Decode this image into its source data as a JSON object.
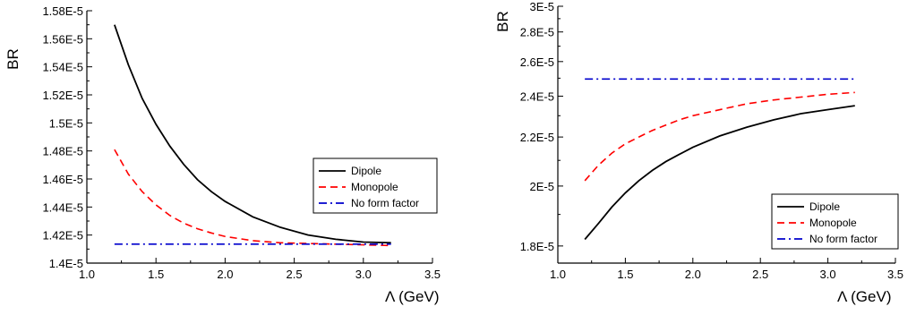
{
  "chart_data": [
    {
      "type": "line",
      "xlabel": "Λ (GeV)",
      "ylabel": "BR",
      "xlim": [
        1.0,
        3.5
      ],
      "ylim": [
        1.4e-05,
        1.58e-05
      ],
      "xticks": [
        "1.0",
        "1.5",
        "2.0",
        "2.5",
        "3.0",
        "3.5"
      ],
      "xtick_values": [
        1.0,
        1.5,
        2.0,
        2.5,
        3.0,
        3.5
      ],
      "yticks": [
        "1.4E-5",
        "1.42E-5",
        "1.44E-5",
        "1.46E-5",
        "1.48E-5",
        "1.5E-5",
        "1.52E-5",
        "1.54E-5",
        "1.56E-5",
        "1.58E-5"
      ],
      "ytick_values": [
        1.4e-05,
        1.42e-05,
        1.44e-05,
        1.46e-05,
        1.48e-05,
        1.5e-05,
        1.52e-05,
        1.54e-05,
        1.56e-05,
        1.58e-05
      ],
      "grid": false,
      "legend_position": "middle-right",
      "series": [
        {
          "name": "Dipole",
          "color": "#000000",
          "dash": "solid",
          "x": [
            1.2,
            1.3,
            1.4,
            1.5,
            1.6,
            1.7,
            1.8,
            1.9,
            2.0,
            2.2,
            2.4,
            2.6,
            2.8,
            3.0,
            3.2
          ],
          "y": [
            1.57e-05,
            1.5415e-05,
            1.5175e-05,
            1.499e-05,
            1.4835e-05,
            1.4705e-05,
            1.4595e-05,
            1.451e-05,
            1.444e-05,
            1.433e-05,
            1.4255e-05,
            1.42e-05,
            1.417e-05,
            1.415e-05,
            1.4145e-05
          ]
        },
        {
          "name": "Monopole",
          "color": "#ff0000",
          "dash": "dashed",
          "x": [
            1.2,
            1.3,
            1.4,
            1.5,
            1.6,
            1.7,
            1.8,
            1.9,
            2.0,
            2.2,
            2.4,
            2.6,
            2.8,
            3.0,
            3.2
          ],
          "y": [
            1.481e-05,
            1.4635e-05,
            1.451e-05,
            1.4415e-05,
            1.434e-05,
            1.4285e-05,
            1.4245e-05,
            1.4215e-05,
            1.419e-05,
            1.416e-05,
            1.4145e-05,
            1.414e-05,
            1.4135e-05,
            1.413e-05,
            1.4125e-05
          ]
        },
        {
          "name": "No form factor",
          "color": "#0000cc",
          "dash": "dashdot",
          "x": [
            1.2,
            3.2
          ],
          "y": [
            1.4135e-05,
            1.4135e-05
          ]
        }
      ]
    },
    {
      "type": "line",
      "xlabel": "Λ (GeV)",
      "ylabel": "BR",
      "xlim": [
        1.0,
        3.5
      ],
      "ylim": [
        1.75e-05,
        3e-05
      ],
      "yscale": "reciprocal",
      "xticks": [
        "1.0",
        "1.5",
        "2.0",
        "2.5",
        "3.0",
        "3.5"
      ],
      "xtick_values": [
        1.0,
        1.5,
        2.0,
        2.5,
        3.0,
        3.5
      ],
      "yticks": [
        "1.8E-5",
        "2E-5",
        "2.2E-5",
        "2.4E-5",
        "2.6E-5",
        "2.8E-5",
        "3E-5"
      ],
      "ytick_values": [
        1.8e-05,
        2e-05,
        2.2e-05,
        2.4e-05,
        2.6e-05,
        2.8e-05,
        3e-05
      ],
      "grid": false,
      "legend_position": "bottom-right",
      "series": [
        {
          "name": "Dipole",
          "color": "#000000",
          "dash": "solid",
          "x": [
            1.2,
            1.3,
            1.4,
            1.5,
            1.6,
            1.7,
            1.8,
            1.9,
            2.0,
            2.2,
            2.4,
            2.6,
            2.8,
            3.0,
            3.2
          ],
          "y": [
            1.82e-05,
            1.87e-05,
            1.925e-05,
            1.975e-05,
            2.02e-05,
            2.06e-05,
            2.095e-05,
            2.125e-05,
            2.155e-05,
            2.205e-05,
            2.245e-05,
            2.28e-05,
            2.31e-05,
            2.33e-05,
            2.35e-05
          ]
        },
        {
          "name": "Monopole",
          "color": "#ff0000",
          "dash": "dashed",
          "x": [
            1.2,
            1.3,
            1.4,
            1.5,
            1.6,
            1.7,
            1.8,
            1.9,
            2.0,
            2.2,
            2.4,
            2.6,
            2.8,
            3.0,
            3.2
          ],
          "y": [
            2.02e-05,
            2.08e-05,
            2.13e-05,
            2.17e-05,
            2.2e-05,
            2.23e-05,
            2.255e-05,
            2.28e-05,
            2.3e-05,
            2.33e-05,
            2.36e-05,
            2.38e-05,
            2.395e-05,
            2.41e-05,
            2.42e-05
          ]
        },
        {
          "name": "No form factor",
          "color": "#0000cc",
          "dash": "dashdot",
          "x": [
            1.2,
            3.2
          ],
          "y": [
            2.495e-05,
            2.495e-05
          ]
        }
      ]
    }
  ]
}
